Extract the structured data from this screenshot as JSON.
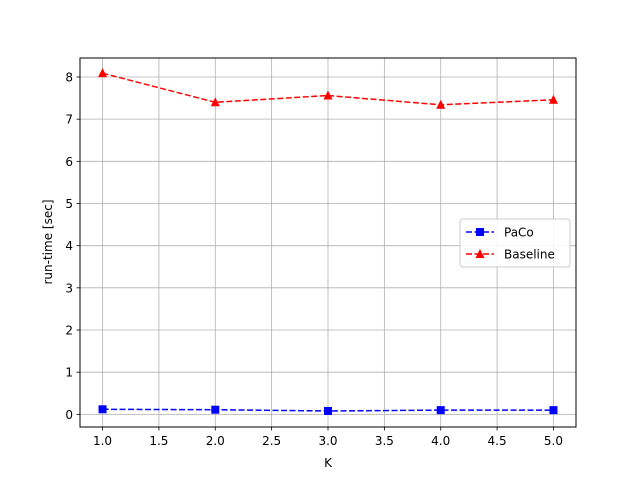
{
  "chart_data": {
    "type": "line",
    "title": "",
    "xlabel": "K",
    "ylabel": "run-time [sec]",
    "xlim": [
      0.8,
      5.2
    ],
    "ylim": [
      -0.3,
      8.45
    ],
    "x_ticks": [
      "1.0",
      "1.5",
      "2.0",
      "2.5",
      "3.0",
      "3.5",
      "4.0",
      "4.5",
      "5.0"
    ],
    "y_ticks": [
      "0",
      "1",
      "2",
      "3",
      "4",
      "5",
      "6",
      "7",
      "8"
    ],
    "grid": true,
    "legend_position": "center-right",
    "x": [
      1,
      2,
      3,
      4,
      5
    ],
    "series": [
      {
        "name": "PaCo",
        "values": [
          0.12,
          0.11,
          0.08,
          0.1,
          0.1
        ],
        "color": "#0000ff",
        "marker": "square",
        "line_style": "dashed"
      },
      {
        "name": "Baseline",
        "values": [
          8.09,
          7.4,
          7.56,
          7.34,
          7.46
        ],
        "color": "#ff0000",
        "marker": "triangle-up",
        "line_style": "dashed"
      }
    ]
  }
}
